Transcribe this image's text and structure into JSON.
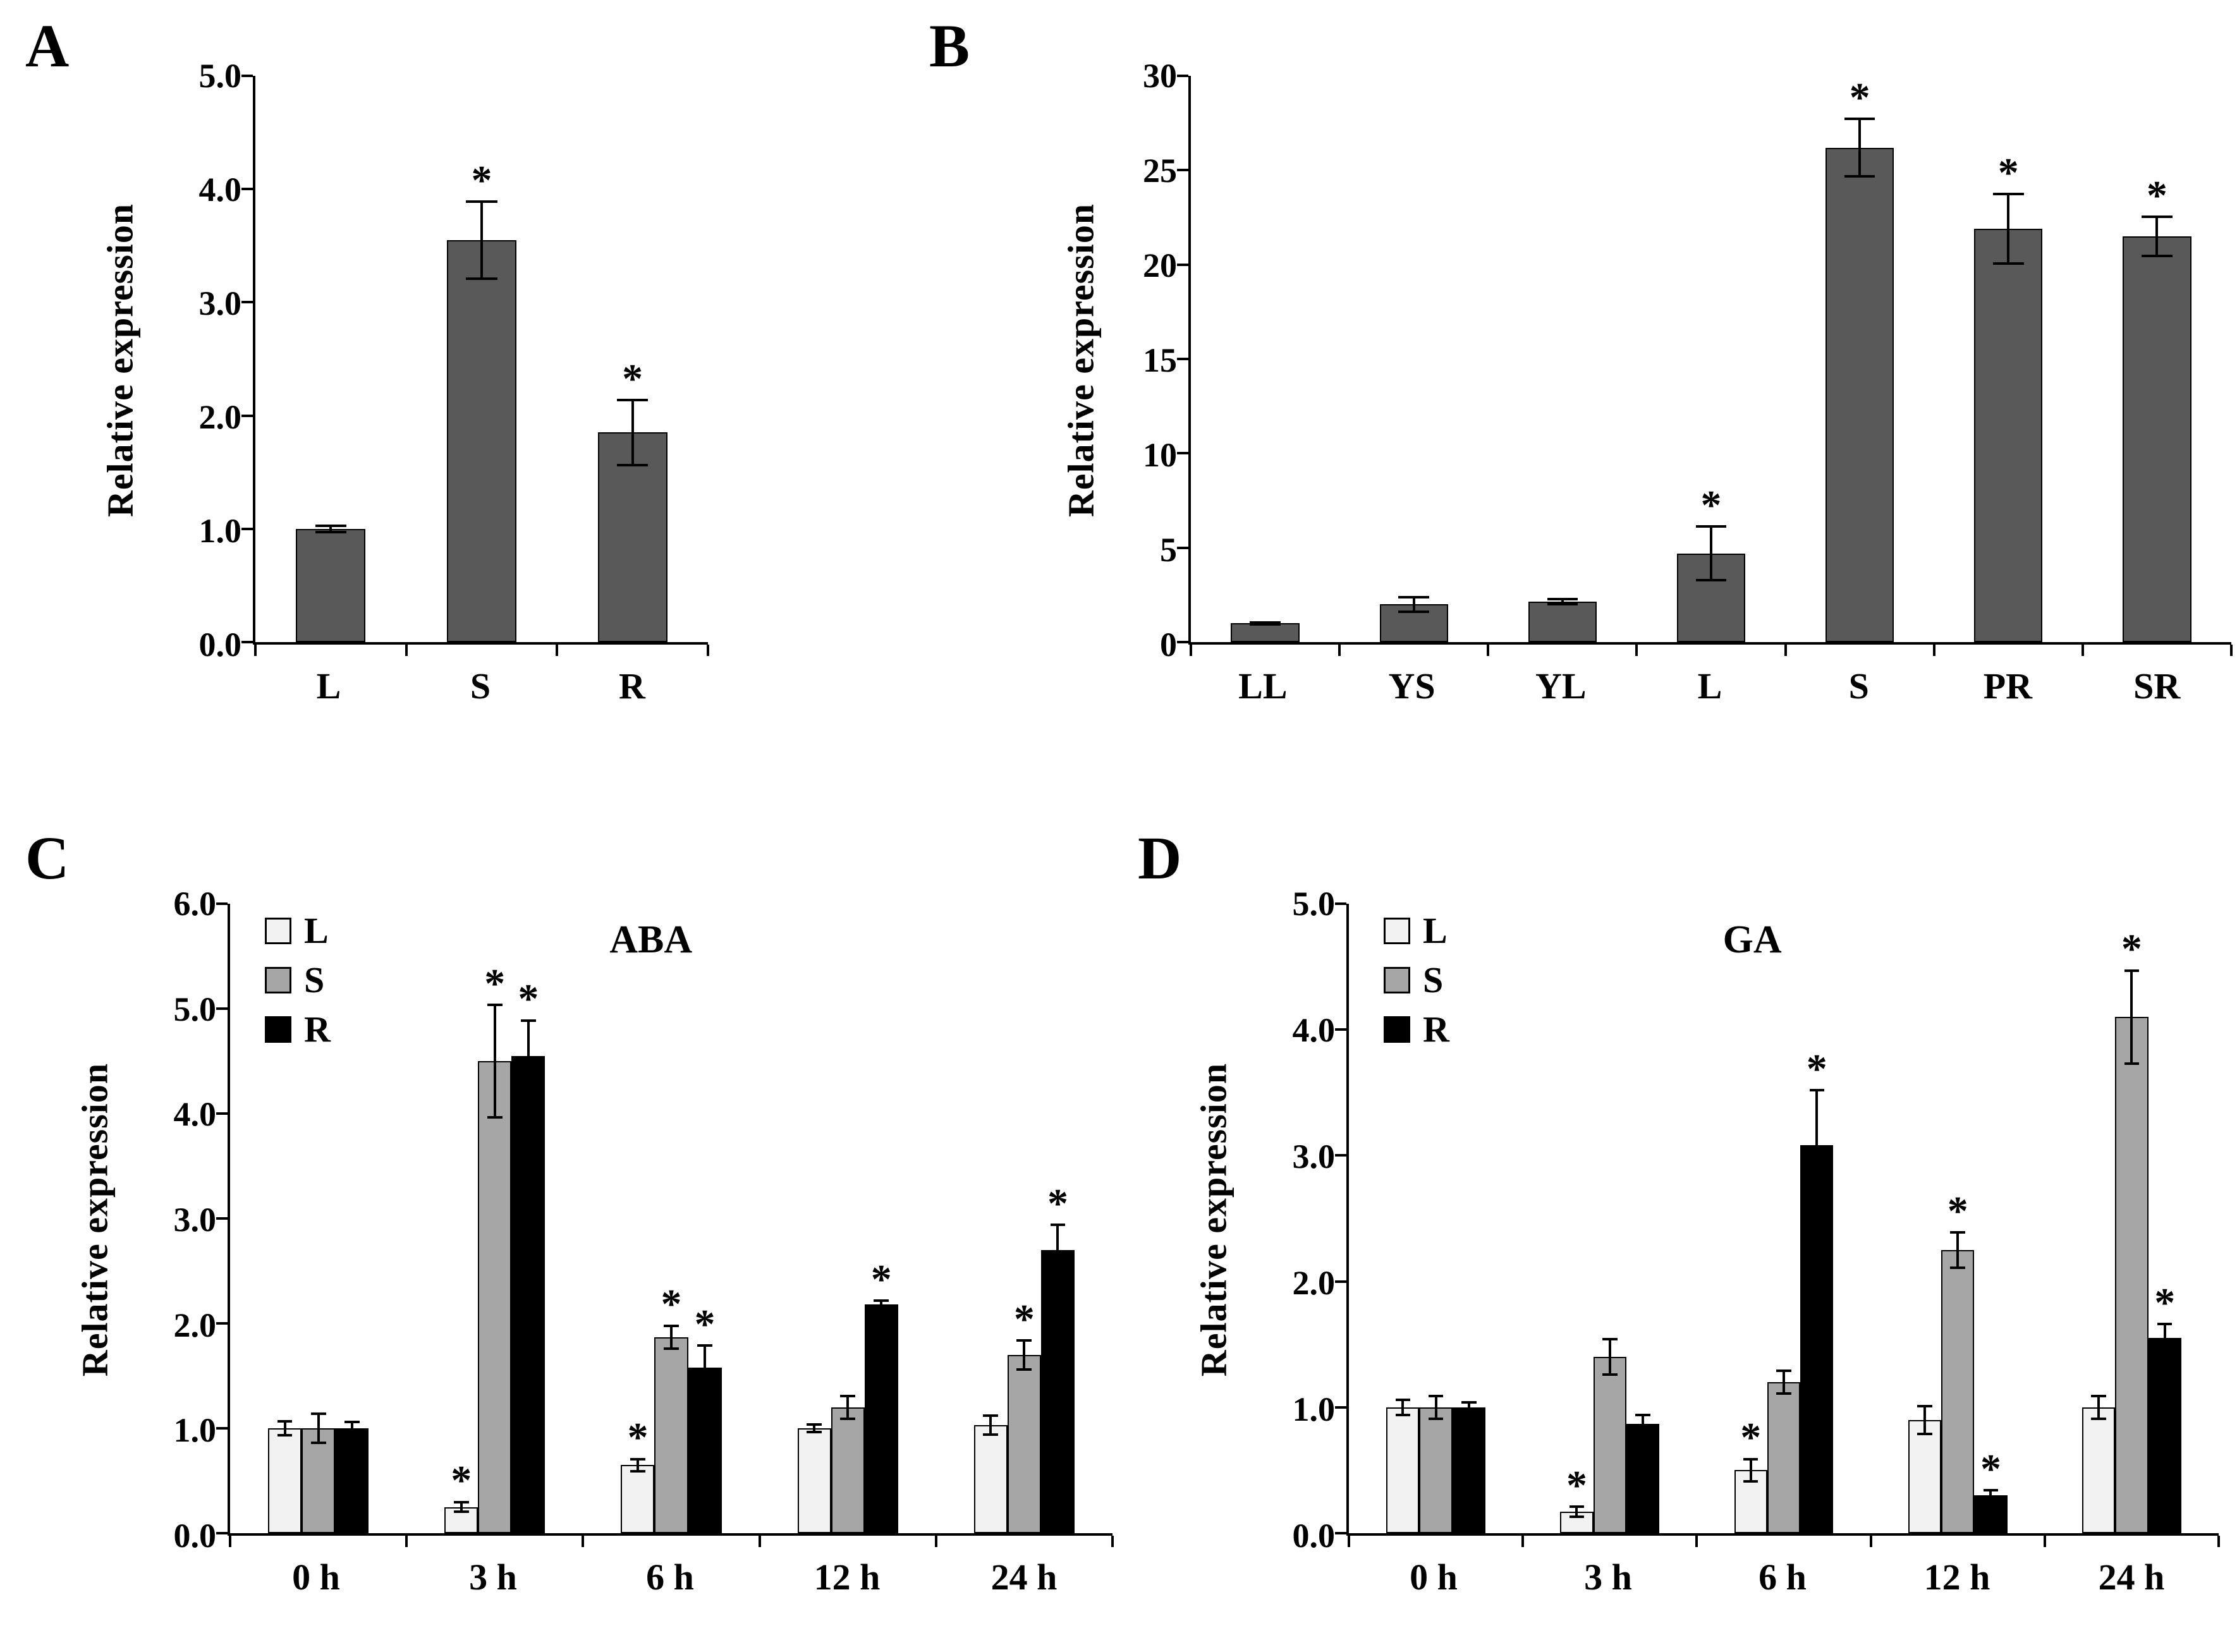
{
  "chart_data": [
    {
      "panel": "A",
      "type": "bar",
      "ylabel": "Relative expression",
      "ylim": [
        0,
        5
      ],
      "ystep": 1,
      "ydecimals": 1,
      "bar_color": "#595959",
      "categories": [
        "L",
        "S",
        "R"
      ],
      "values": [
        1.0,
        3.55,
        1.85
      ],
      "errors": [
        0.04,
        0.35,
        0.3
      ],
      "significant": [
        false,
        true,
        true
      ]
    },
    {
      "panel": "B",
      "type": "bar",
      "ylabel": "Relative expression",
      "ylim": [
        0,
        30
      ],
      "ystep": 5,
      "ydecimals": 0,
      "bar_color": "#595959",
      "categories": [
        "LL",
        "YS",
        "YL",
        "L",
        "S",
        "PR",
        "SR"
      ],
      "values": [
        1.0,
        2.0,
        2.15,
        4.7,
        26.2,
        21.9,
        21.5
      ],
      "errors": [
        0.12,
        0.45,
        0.2,
        1.5,
        1.6,
        1.9,
        1.1
      ],
      "significant": [
        false,
        false,
        false,
        true,
        true,
        true,
        true
      ]
    },
    {
      "panel": "C",
      "type": "grouped-bar",
      "annotation": "ABA",
      "ylabel": "Relative expression",
      "ylim": [
        0,
        6
      ],
      "ystep": 1,
      "ydecimals": 1,
      "legend_position": "top-left",
      "categories": [
        "0 h",
        "3 h",
        "6 h",
        "12 h",
        "24 h"
      ],
      "series": [
        {
          "name": "L",
          "color": "#f2f2f2",
          "values": [
            1.0,
            0.25,
            0.65,
            1.0,
            1.03
          ],
          "errors": [
            0.08,
            0.06,
            0.07,
            0.05,
            0.1
          ],
          "significant": [
            false,
            true,
            true,
            false,
            false
          ]
        },
        {
          "name": "S",
          "color": "#a6a6a6",
          "values": [
            1.0,
            4.5,
            1.87,
            1.2,
            1.7
          ],
          "errors": [
            0.15,
            0.55,
            0.12,
            0.12,
            0.15
          ],
          "significant": [
            false,
            true,
            true,
            false,
            true
          ]
        },
        {
          "name": "R",
          "color": "#000000",
          "values": [
            1.0,
            4.55,
            1.58,
            2.18,
            2.7
          ],
          "errors": [
            0.07,
            0.35,
            0.22,
            0.05,
            0.25
          ],
          "significant": [
            false,
            true,
            true,
            true,
            true
          ]
        }
      ]
    },
    {
      "panel": "D",
      "type": "grouped-bar",
      "annotation": "GA",
      "ylabel": "Relative expression",
      "ylim": [
        0,
        5
      ],
      "ystep": 1,
      "ydecimals": 1,
      "legend_position": "top-left",
      "categories": [
        "0 h",
        "3 h",
        "6 h",
        "12 h",
        "24 h"
      ],
      "series": [
        {
          "name": "L",
          "color": "#f2f2f2",
          "values": [
            1.0,
            0.17,
            0.5,
            0.9,
            1.0
          ],
          "errors": [
            0.07,
            0.05,
            0.1,
            0.12,
            0.1
          ],
          "significant": [
            false,
            true,
            true,
            false,
            false
          ]
        },
        {
          "name": "S",
          "color": "#a6a6a6",
          "values": [
            1.0,
            1.4,
            1.2,
            2.25,
            4.1
          ],
          "errors": [
            0.1,
            0.15,
            0.1,
            0.15,
            0.38
          ],
          "significant": [
            false,
            false,
            false,
            true,
            true
          ]
        },
        {
          "name": "R",
          "color": "#000000",
          "values": [
            1.0,
            0.87,
            3.08,
            0.3,
            1.55
          ],
          "errors": [
            0.05,
            0.08,
            0.45,
            0.05,
            0.12
          ],
          "significant": [
            false,
            false,
            true,
            true,
            true
          ]
        }
      ]
    }
  ]
}
